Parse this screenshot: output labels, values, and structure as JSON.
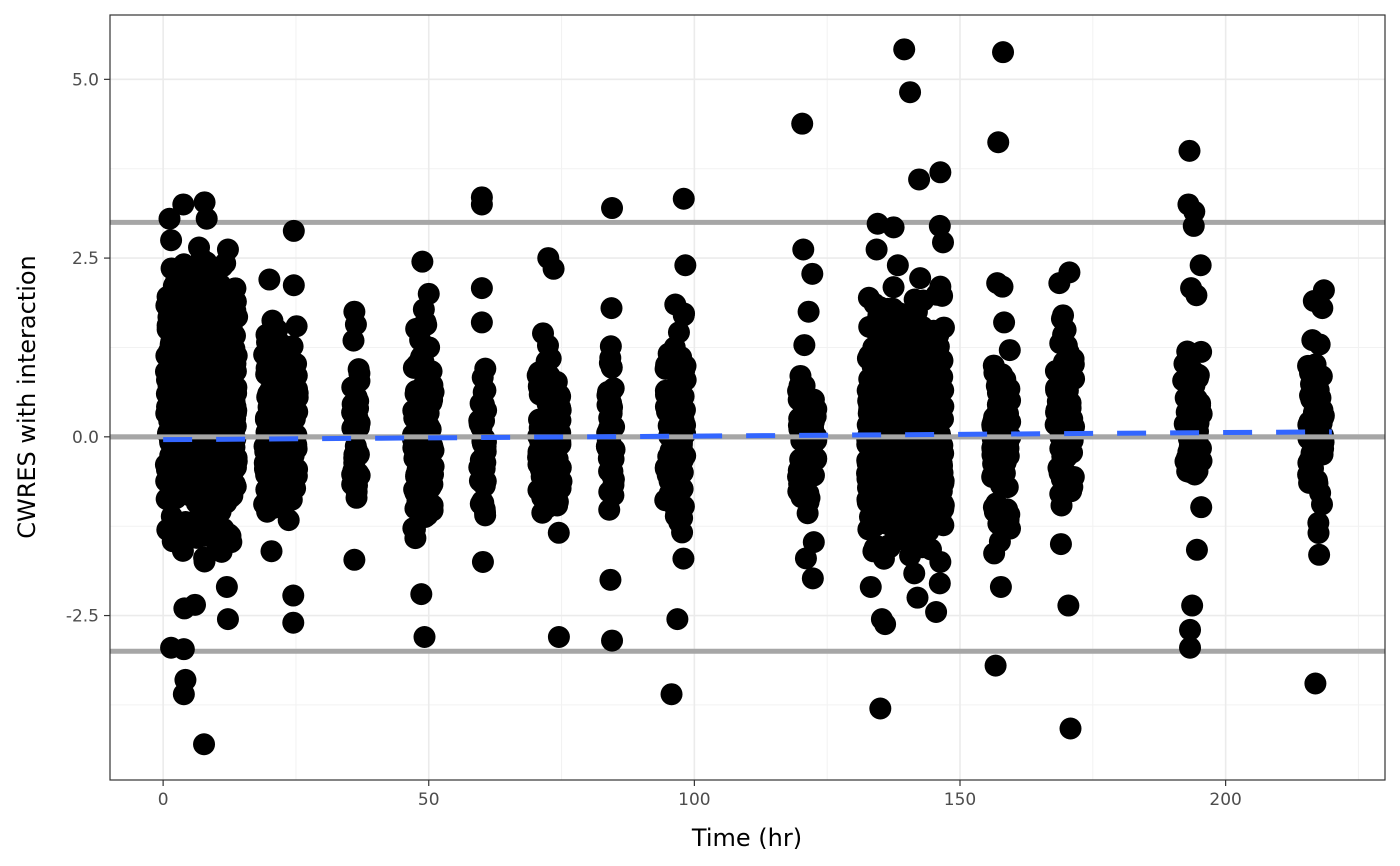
{
  "chart_data": {
    "type": "scatter",
    "title": "",
    "xlabel": "Time (hr)",
    "ylabel": "CWRES with interaction",
    "xlim": [
      -10,
      230
    ],
    "ylim": [
      -4.8,
      5.9
    ],
    "x_ticks": [
      0,
      50,
      100,
      150,
      200
    ],
    "x_tick_labels": [
      "0",
      "50",
      "100",
      "150",
      "200"
    ],
    "y_ticks": [
      -2.5,
      0,
      2.5,
      5
    ],
    "y_tick_labels": [
      "-2.5",
      "0.0",
      "2.5",
      "5.0"
    ],
    "grid": true,
    "reference_lines": [
      {
        "y": 3,
        "color": "#a6a6a6"
      },
      {
        "y": 0,
        "color": "#a6a6a6"
      },
      {
        "y": -3,
        "color": "#a6a6a6"
      }
    ],
    "trend_line": {
      "color": "#3366ff",
      "style": "dashed",
      "x": [
        0,
        220
      ],
      "y": [
        -0.04,
        0.07
      ]
    },
    "point_color": "#000000",
    "dense_clusters": [
      {
        "x_min": 0.5,
        "x_max": 14,
        "y_min": -2.1,
        "y_max": 3.0,
        "n": 700
      },
      {
        "x_min": 19,
        "x_max": 25.5,
        "y_min": -1.8,
        "y_max": 2.2,
        "n": 160
      },
      {
        "x_min": 35.5,
        "x_max": 37,
        "y_min": -1.7,
        "y_max": 1.8,
        "n": 40
      },
      {
        "x_min": 47,
        "x_max": 51,
        "y_min": -2.0,
        "y_max": 2.1,
        "n": 120
      },
      {
        "x_min": 59.5,
        "x_max": 60.8,
        "y_min": -1.7,
        "y_max": 1.6,
        "n": 40
      },
      {
        "x_min": 70.5,
        "x_max": 75,
        "y_min": -1.9,
        "y_max": 2.0,
        "n": 120
      },
      {
        "x_min": 83.5,
        "x_max": 85,
        "y_min": -1.6,
        "y_max": 1.7,
        "n": 45
      },
      {
        "x_min": 94.5,
        "x_max": 98.5,
        "y_min": -2.2,
        "y_max": 2.3,
        "n": 100
      },
      {
        "x_min": 119.5,
        "x_max": 123,
        "y_min": -1.7,
        "y_max": 1.7,
        "n": 70
      },
      {
        "x_min": 132.5,
        "x_max": 147,
        "y_min": -2.2,
        "y_max": 2.4,
        "n": 650
      },
      {
        "x_min": 156,
        "x_max": 159.5,
        "y_min": -2.0,
        "y_max": 1.6,
        "n": 80
      },
      {
        "x_min": 168,
        "x_max": 171.5,
        "y_min": -1.5,
        "y_max": 2.2,
        "n": 70
      },
      {
        "x_min": 192,
        "x_max": 195.5,
        "y_min": -1.5,
        "y_max": 2.0,
        "n": 60
      },
      {
        "x_min": 215.5,
        "x_max": 218.5,
        "y_min": -1.6,
        "y_max": 2.0,
        "n": 60
      }
    ],
    "points": [
      {
        "x": 1.2,
        "y": 3.05
      },
      {
        "x": 3.8,
        "y": 3.25
      },
      {
        "x": 7.8,
        "y": 3.28
      },
      {
        "x": 8.2,
        "y": 3.05
      },
      {
        "x": 1.5,
        "y": 2.75
      },
      {
        "x": 12.2,
        "y": 2.62
      },
      {
        "x": 8.5,
        "y": 2.4
      },
      {
        "x": 12,
        "y": -2.1
      },
      {
        "x": 1.5,
        "y": -2.95
      },
      {
        "x": 3.9,
        "y": -2.97
      },
      {
        "x": 4.2,
        "y": -3.4
      },
      {
        "x": 3.9,
        "y": -3.6
      },
      {
        "x": 7.7,
        "y": -4.3
      },
      {
        "x": 12.2,
        "y": -2.55
      },
      {
        "x": 4,
        "y": -2.4
      },
      {
        "x": 6,
        "y": -2.35
      },
      {
        "x": 20,
        "y": 2.2
      },
      {
        "x": 24.6,
        "y": 2.88
      },
      {
        "x": 24.6,
        "y": 2.12
      },
      {
        "x": 24.5,
        "y": -2.22
      },
      {
        "x": 24.5,
        "y": -2.6
      },
      {
        "x": 20.4,
        "y": -1.6
      },
      {
        "x": 36,
        "y": 1.75
      },
      {
        "x": 36,
        "y": -1.72
      },
      {
        "x": 48.8,
        "y": 2.45
      },
      {
        "x": 50,
        "y": 2.0
      },
      {
        "x": 48.6,
        "y": -2.2
      },
      {
        "x": 49.2,
        "y": -2.8
      },
      {
        "x": 60,
        "y": 3.35
      },
      {
        "x": 60,
        "y": 3.25
      },
      {
        "x": 60,
        "y": 2.08
      },
      {
        "x": 60,
        "y": 1.6
      },
      {
        "x": 60.2,
        "y": -1.75
      },
      {
        "x": 72.5,
        "y": 2.5
      },
      {
        "x": 73.5,
        "y": 2.35
      },
      {
        "x": 74.5,
        "y": -2.8
      },
      {
        "x": 84.5,
        "y": 3.2
      },
      {
        "x": 84.4,
        "y": 1.8
      },
      {
        "x": 84.2,
        "y": -2.0
      },
      {
        "x": 84.5,
        "y": -2.85
      },
      {
        "x": 98,
        "y": 3.33
      },
      {
        "x": 98.3,
        "y": 2.4
      },
      {
        "x": 98,
        "y": 1.7
      },
      {
        "x": 96.8,
        "y": -2.55
      },
      {
        "x": 95.7,
        "y": -3.6
      },
      {
        "x": 120.3,
        "y": 4.38
      },
      {
        "x": 120.5,
        "y": 2.62
      },
      {
        "x": 122.2,
        "y": 2.28
      },
      {
        "x": 121.5,
        "y": 1.75
      },
      {
        "x": 122.3,
        "y": -1.98
      },
      {
        "x": 121,
        "y": -1.7
      },
      {
        "x": 134.5,
        "y": 2.98
      },
      {
        "x": 137.5,
        "y": 2.93
      },
      {
        "x": 139.5,
        "y": 5.42
      },
      {
        "x": 140.6,
        "y": 4.82
      },
      {
        "x": 142.3,
        "y": 3.6
      },
      {
        "x": 146.3,
        "y": 3.7
      },
      {
        "x": 146.2,
        "y": 2.95
      },
      {
        "x": 146.8,
        "y": 2.72
      },
      {
        "x": 134.3,
        "y": 2.62
      },
      {
        "x": 138.3,
        "y": 2.4
      },
      {
        "x": 142.5,
        "y": 2.22
      },
      {
        "x": 146.3,
        "y": 2.1
      },
      {
        "x": 133.2,
        "y": -2.1
      },
      {
        "x": 135.3,
        "y": -2.55
      },
      {
        "x": 135.9,
        "y": -2.62
      },
      {
        "x": 135,
        "y": -3.8
      },
      {
        "x": 145.5,
        "y": -2.45
      },
      {
        "x": 146.2,
        "y": -2.05
      },
      {
        "x": 146.3,
        "y": -1.75
      },
      {
        "x": 142,
        "y": -2.25
      },
      {
        "x": 158.1,
        "y": 5.38
      },
      {
        "x": 157.2,
        "y": 4.12
      },
      {
        "x": 157,
        "y": 2.15
      },
      {
        "x": 158,
        "y": 2.1
      },
      {
        "x": 158.3,
        "y": 1.6
      },
      {
        "x": 157.7,
        "y": -2.1
      },
      {
        "x": 156.7,
        "y": -3.2
      },
      {
        "x": 168.7,
        "y": 2.15
      },
      {
        "x": 170.6,
        "y": 2.3
      },
      {
        "x": 170.4,
        "y": -2.36
      },
      {
        "x": 170.8,
        "y": -4.08
      },
      {
        "x": 169,
        "y": -1.5
      },
      {
        "x": 193.2,
        "y": 4.0
      },
      {
        "x": 193,
        "y": 3.25
      },
      {
        "x": 194.1,
        "y": 3.15
      },
      {
        "x": 194,
        "y": 2.95
      },
      {
        "x": 195.3,
        "y": 2.4
      },
      {
        "x": 193.5,
        "y": 2.08
      },
      {
        "x": 194.5,
        "y": 1.98
      },
      {
        "x": 194.6,
        "y": -1.58
      },
      {
        "x": 193.7,
        "y": -2.36
      },
      {
        "x": 193.3,
        "y": -2.7
      },
      {
        "x": 193.3,
        "y": -2.95
      },
      {
        "x": 218.5,
        "y": 2.05
      },
      {
        "x": 218.2,
        "y": 1.8
      },
      {
        "x": 216.6,
        "y": 1.9
      },
      {
        "x": 217.6,
        "y": -1.65
      },
      {
        "x": 216.9,
        "y": -3.45
      }
    ]
  }
}
